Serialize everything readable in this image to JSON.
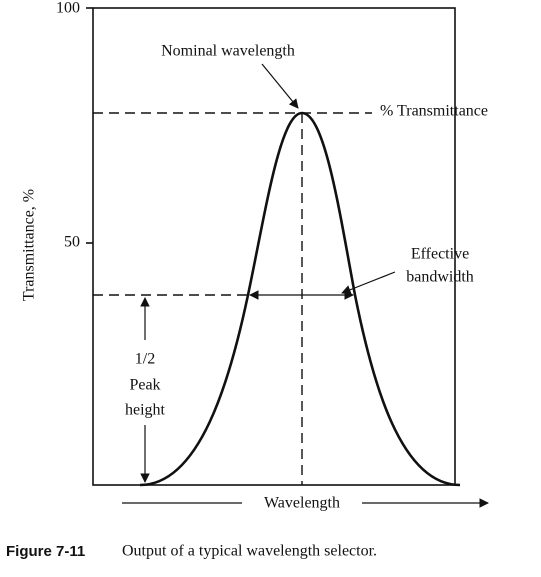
{
  "axes": {
    "y_label": "Transmittance, %",
    "y_ticks": [
      "100",
      "50"
    ],
    "x_label": "Wavelength"
  },
  "annotations": {
    "nominal_wavelength": "Nominal wavelength",
    "transmittance": "% Transmittance",
    "effective_bandwidth": [
      "Effective",
      "bandwidth"
    ],
    "half_peak_height": [
      "1/2",
      "Peak",
      "height"
    ]
  },
  "caption": {
    "label": "Figure 7-11",
    "text": "Output of a typical wavelength selector."
  }
}
